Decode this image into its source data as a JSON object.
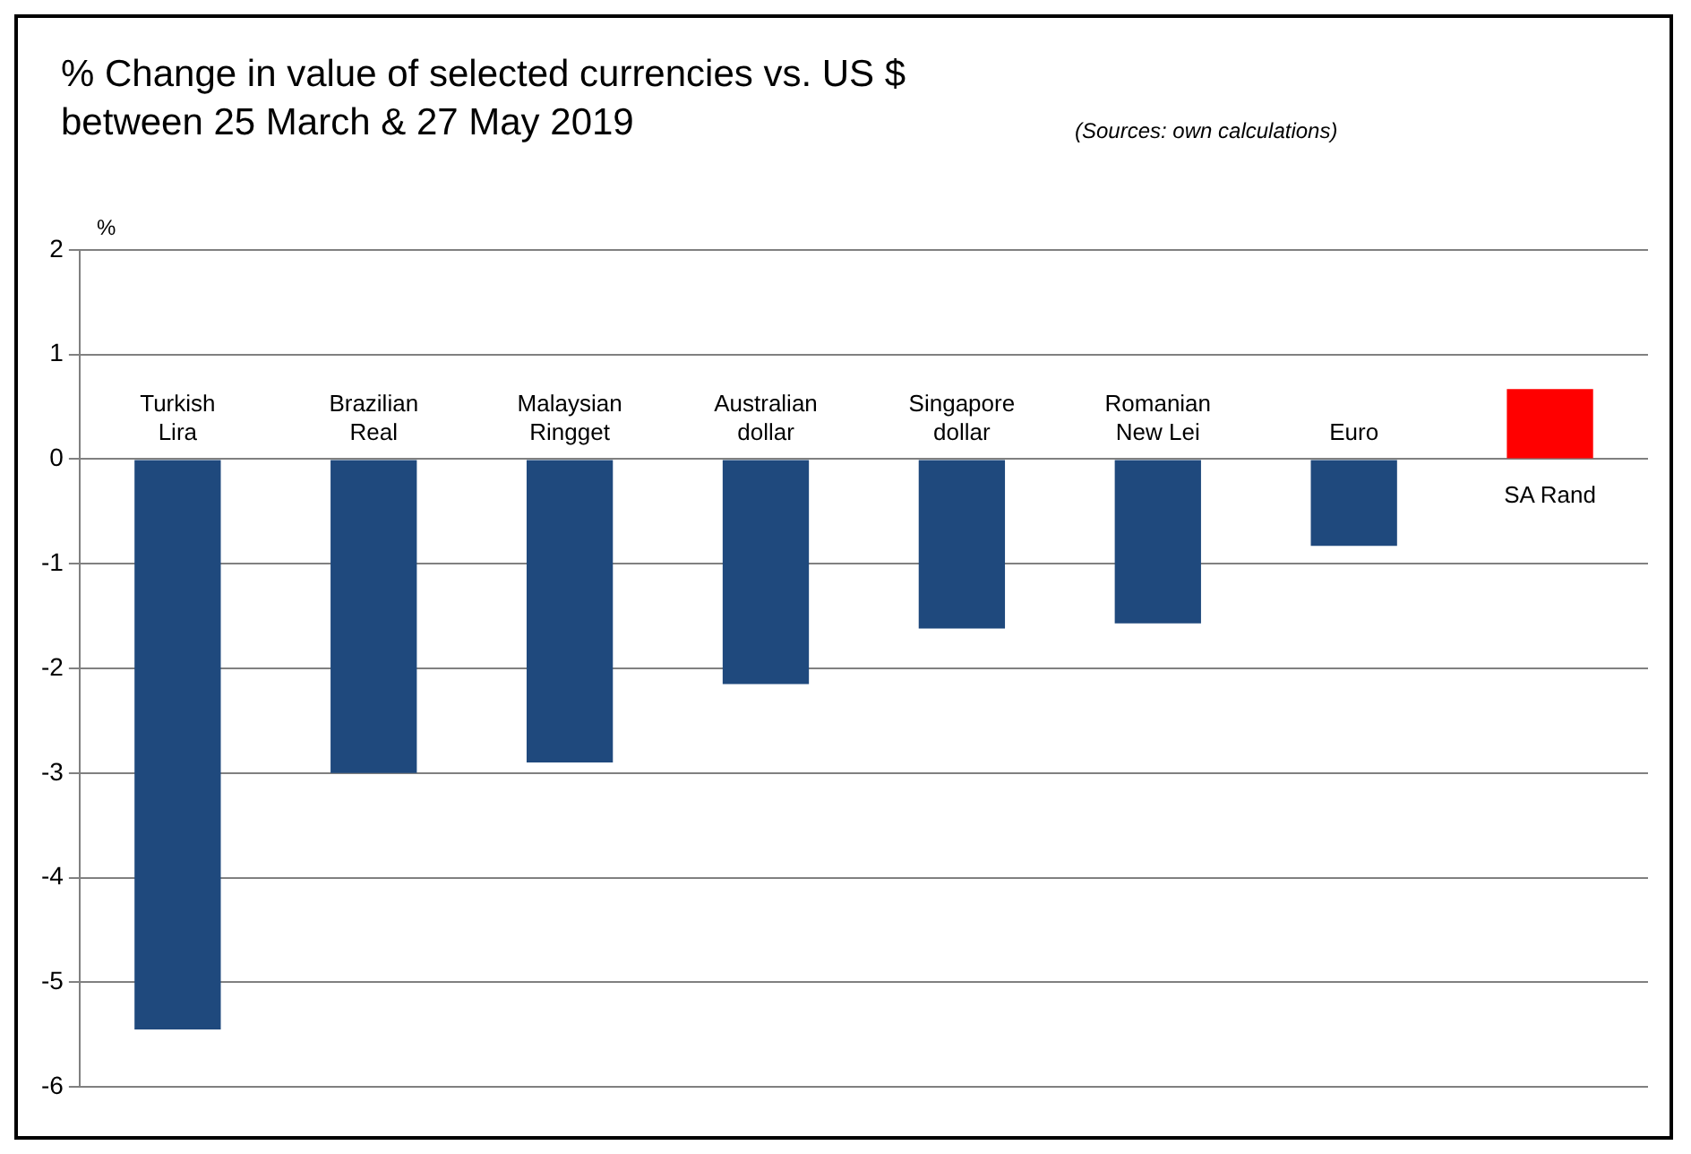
{
  "chart_data": {
    "type": "bar",
    "title": "% Change in value of selected currencies vs. US $ between 25 March & 27 May 2019",
    "ylabel": "%",
    "annotations": [
      "(Sources: own calculations)"
    ],
    "categories": [
      "Turkish Lira",
      "Brazilian Real",
      "Malaysian Ringget",
      "Australian dollar",
      "Singapore dollar",
      "Romanian New Lei",
      "Euro",
      "SA Rand"
    ],
    "values": [
      -5.45,
      -3.0,
      -2.9,
      -2.15,
      -1.62,
      -1.57,
      -0.83,
      0.67
    ],
    "colors": [
      "#1f497d",
      "#1f497d",
      "#1f497d",
      "#1f497d",
      "#1f497d",
      "#1f497d",
      "#1f497d",
      "#ff0000"
    ],
    "ylim": [
      -6,
      2
    ],
    "yticks": [
      -6,
      -5,
      -4,
      -3,
      -2,
      -1,
      0,
      1,
      2
    ],
    "grid": "y",
    "legend": false
  }
}
